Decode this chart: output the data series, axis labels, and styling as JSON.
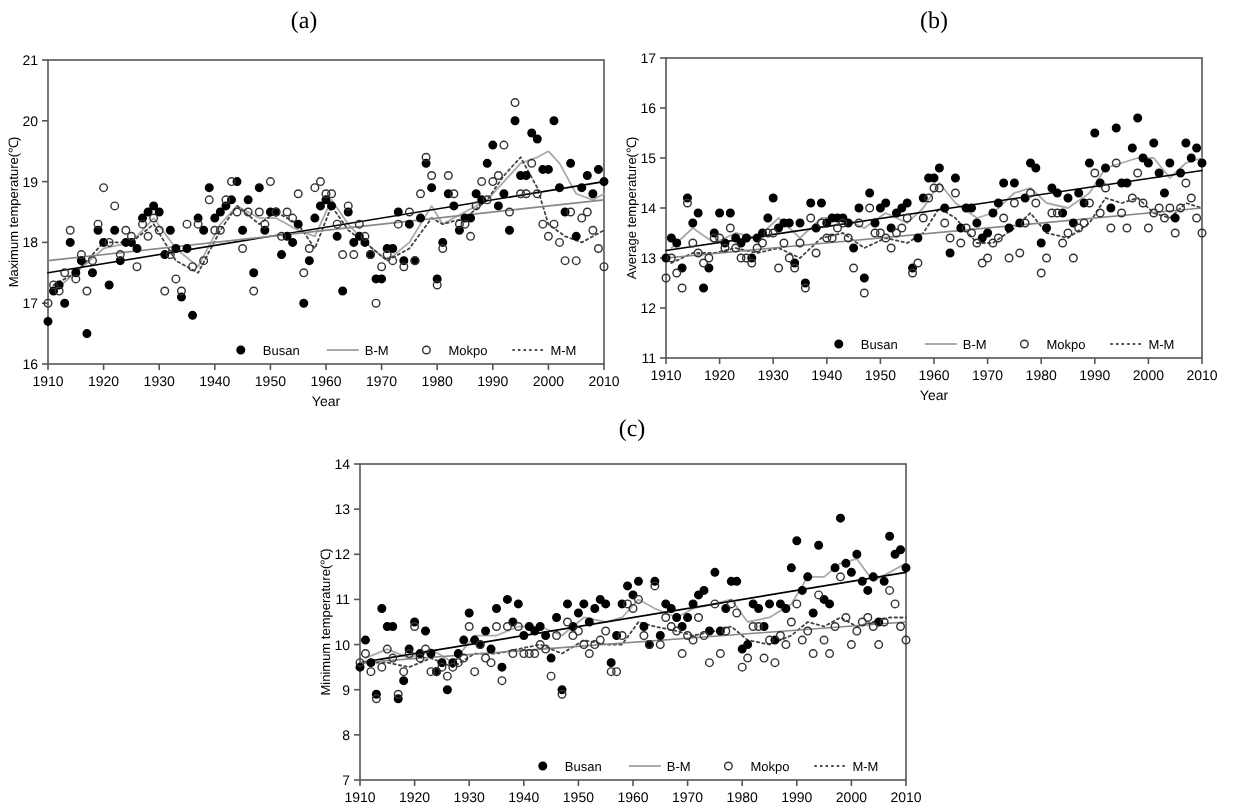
{
  "chart_data": [
    {
      "type": "scatter",
      "title": "(a)",
      "xlabel": "Year",
      "ylabel": "Maximum temperature(℃)",
      "xlim": [
        1910,
        2010
      ],
      "xticks": [
        1910,
        1920,
        1930,
        1940,
        1950,
        1960,
        1970,
        1980,
        1990,
        2000,
        2010
      ],
      "ylim": [
        16,
        21
      ],
      "yticks": [
        16,
        17,
        18,
        19,
        20,
        21
      ],
      "legend": "bottom right",
      "grid": false,
      "x": [
        1910,
        1911,
        1912,
        1913,
        1914,
        1915,
        1916,
        1917,
        1918,
        1919,
        1920,
        1921,
        1922,
        1923,
        1924,
        1925,
        1926,
        1927,
        1928,
        1929,
        1930,
        1931,
        1932,
        1933,
        1934,
        1935,
        1936,
        1937,
        1938,
        1939,
        1940,
        1941,
        1942,
        1943,
        1944,
        1945,
        1946,
        1947,
        1948,
        1949,
        1950,
        1951,
        1952,
        1953,
        1954,
        1955,
        1956,
        1957,
        1958,
        1959,
        1960,
        1961,
        1962,
        1963,
        1964,
        1965,
        1966,
        1967,
        1968,
        1969,
        1970,
        1971,
        1972,
        1973,
        1974,
        1975,
        1976,
        1977,
        1978,
        1979,
        1980,
        1981,
        1982,
        1983,
        1984,
        1985,
        1986,
        1987,
        1988,
        1989,
        1990,
        1991,
        1992,
        1993,
        1994,
        1995,
        1996,
        1997,
        1998,
        1999,
        2000,
        2001,
        2002,
        2003,
        2004,
        2005,
        2006,
        2007,
        2008,
        2009,
        2010
      ],
      "series": [
        {
          "name": "Busan",
          "type": "scatter",
          "marker": "circle",
          "color": "#000000",
          "values": [
            16.7,
            17.2,
            17.3,
            17.0,
            18.0,
            17.5,
            17.7,
            16.5,
            17.5,
            18.2,
            18.0,
            17.3,
            18.2,
            17.7,
            18.0,
            18.0,
            17.9,
            18.4,
            18.5,
            18.6,
            18.5,
            17.8,
            18.2,
            17.9,
            17.1,
            17.9,
            16.8,
            18.4,
            18.2,
            18.9,
            18.4,
            18.5,
            18.6,
            18.7,
            19.0,
            18.2,
            18.7,
            17.5,
            18.9,
            18.2,
            18.5,
            18.5,
            17.8,
            18.1,
            18.0,
            18.3,
            17.0,
            17.7,
            18.4,
            18.6,
            18.7,
            18.6,
            18.1,
            17.2,
            18.5,
            18.0,
            18.1,
            18.0,
            17.8,
            17.4,
            17.4,
            17.9,
            17.9,
            18.5,
            17.7,
            18.3,
            17.7,
            18.4,
            19.3,
            18.9,
            17.4,
            18.0,
            18.8,
            18.6,
            18.2,
            18.4,
            18.4,
            18.8,
            18.7,
            19.3,
            19.6,
            18.6,
            18.8,
            18.2,
            20.0,
            19.1,
            19.1,
            19.8,
            19.7,
            19.2,
            19.2,
            20.0,
            18.9,
            18.5,
            19.3,
            18.1,
            18.9,
            19.1,
            18.8,
            19.2,
            19.0
          ]
        },
        {
          "name": "B-M",
          "type": "line",
          "line_style": "solid",
          "color": "#aaaaaa",
          "x": [
            1911,
            1915,
            1920,
            1925,
            1929,
            1933,
            1937,
            1941,
            1944,
            1948,
            1951,
            1955,
            1958,
            1961,
            1964,
            1967,
            1971,
            1975,
            1979,
            1981,
            1985,
            1989,
            1992,
            1995,
            1998,
            2000,
            2002,
            2005,
            2008,
            2010
          ],
          "values": [
            17.2,
            17.5,
            17.9,
            18.0,
            18.4,
            17.9,
            17.6,
            18.3,
            18.6,
            18.4,
            18.4,
            18.2,
            18.1,
            18.7,
            18.3,
            18.0,
            17.7,
            18.0,
            18.6,
            18.3,
            18.5,
            18.7,
            19.0,
            19.3,
            19.4,
            19.5,
            19.3,
            18.8,
            18.7,
            18.8
          ]
        },
        {
          "name": "Mokpo",
          "type": "scatter",
          "marker": "circle",
          "color": "#333333",
          "values": [
            17.0,
            17.3,
            17.2,
            17.5,
            18.2,
            17.4,
            17.8,
            17.2,
            17.7,
            18.3,
            18.9,
            18.0,
            18.6,
            17.8,
            18.2,
            18.1,
            17.6,
            18.3,
            18.1,
            18.4,
            18.2,
            17.2,
            17.8,
            17.4,
            17.2,
            18.3,
            17.6,
            18.3,
            17.7,
            18.7,
            18.2,
            18.2,
            18.7,
            19.0,
            18.5,
            17.9,
            18.5,
            17.2,
            18.5,
            18.3,
            19.0,
            18.5,
            18.1,
            18.5,
            18.4,
            18.8,
            17.5,
            17.9,
            18.9,
            19.0,
            18.8,
            18.8,
            18.3,
            17.8,
            18.6,
            17.8,
            18.3,
            18.1,
            17.8,
            17.0,
            17.6,
            17.8,
            17.7,
            18.3,
            17.6,
            18.5,
            17.7,
            18.8,
            19.4,
            19.1,
            17.3,
            17.9,
            19.1,
            18.8,
            18.3,
            18.3,
            18.1,
            18.6,
            19.0,
            18.7,
            19.0,
            19.1,
            19.6,
            18.5,
            20.3,
            18.8,
            18.8,
            19.3,
            18.8,
            18.3,
            18.1,
            18.3,
            18.0,
            17.7,
            18.5,
            17.7,
            18.4,
            18.5,
            18.2,
            17.9,
            17.6
          ]
        },
        {
          "name": "M-M",
          "type": "line",
          "line_style": "dotted",
          "color": "#444444",
          "x": [
            1911,
            1915,
            1920,
            1925,
            1929,
            1933,
            1937,
            1941,
            1944,
            1948,
            1951,
            1955,
            1958,
            1961,
            1964,
            1967,
            1971,
            1975,
            1979,
            1981,
            1985,
            1989,
            1992,
            1995,
            1998,
            2000,
            2003,
            2006,
            2010
          ],
          "values": [
            17.3,
            17.5,
            18.0,
            18.0,
            18.3,
            17.7,
            17.5,
            18.2,
            18.6,
            18.3,
            18.5,
            18.3,
            17.9,
            18.6,
            18.2,
            18.0,
            17.7,
            17.9,
            18.4,
            18.3,
            18.4,
            18.7,
            19.1,
            19.4,
            18.9,
            18.3,
            18.1,
            18.0,
            18.2
          ]
        },
        {
          "type": "line",
          "line_style": "solid",
          "color": "#000000",
          "x": [
            1910,
            2010
          ],
          "values": [
            17.5,
            19.0
          ]
        },
        {
          "type": "line",
          "line_style": "solid",
          "color": "#888888",
          "x": [
            1910,
            2010
          ],
          "values": [
            17.7,
            18.7
          ]
        }
      ]
    },
    {
      "type": "scatter",
      "title": "(b)",
      "xlabel": "Year",
      "ylabel": "Average temperature(℃)",
      "xlim": [
        1910,
        2010
      ],
      "xticks": [
        1910,
        1920,
        1930,
        1940,
        1950,
        1960,
        1970,
        1980,
        1990,
        2000,
        2010
      ],
      "ylim": [
        11,
        17
      ],
      "yticks": [
        11,
        12,
        13,
        14,
        15,
        16,
        17
      ],
      "legend": "bottom right",
      "grid": false,
      "x": [
        1910,
        1911,
        1912,
        1913,
        1914,
        1915,
        1916,
        1917,
        1918,
        1919,
        1920,
        1921,
        1922,
        1923,
        1924,
        1925,
        1926,
        1927,
        1928,
        1929,
        1930,
        1931,
        1932,
        1933,
        1934,
        1935,
        1936,
        1937,
        1938,
        1939,
        1940,
        1941,
        1942,
        1943,
        1944,
        1945,
        1946,
        1947,
        1948,
        1949,
        1950,
        1951,
        1952,
        1953,
        1954,
        1955,
        1956,
        1957,
        1958,
        1959,
        1960,
        1961,
        1962,
        1963,
        1964,
        1965,
        1966,
        1967,
        1968,
        1969,
        1970,
        1971,
        1972,
        1973,
        1974,
        1975,
        1976,
        1977,
        1978,
        1979,
        1980,
        1981,
        1982,
        1983,
        1984,
        1985,
        1986,
        1987,
        1988,
        1989,
        1990,
        1991,
        1992,
        1993,
        1994,
        1995,
        1996,
        1997,
        1998,
        1999,
        2000,
        2001,
        2002,
        2003,
        2004,
        2005,
        2006,
        2007,
        2008,
        2009,
        2010
      ],
      "series": [
        {
          "name": "Busan",
          "type": "scatter",
          "marker": "circle",
          "color": "#000000",
          "values": [
            13.0,
            13.4,
            13.3,
            12.8,
            14.2,
            13.7,
            13.9,
            12.4,
            12.8,
            13.5,
            13.9,
            13.3,
            13.9,
            13.4,
            13.3,
            13.4,
            13.0,
            13.4,
            13.5,
            13.8,
            14.2,
            13.6,
            13.7,
            13.7,
            12.9,
            13.7,
            12.5,
            14.1,
            13.6,
            14.1,
            13.7,
            13.8,
            13.8,
            13.8,
            13.7,
            13.2,
            14.0,
            12.6,
            14.3,
            13.7,
            14.0,
            14.1,
            13.6,
            13.9,
            14.0,
            14.1,
            12.8,
            13.4,
            14.2,
            14.6,
            14.6,
            14.8,
            14.0,
            13.1,
            14.6,
            13.6,
            14.0,
            14.0,
            13.7,
            13.4,
            13.5,
            13.9,
            14.1,
            14.5,
            13.6,
            14.5,
            13.7,
            14.2,
            14.9,
            14.8,
            13.3,
            13.6,
            14.4,
            14.3,
            13.9,
            14.2,
            13.7,
            14.3,
            14.1,
            14.9,
            15.5,
            14.5,
            14.8,
            14.0,
            15.6,
            14.5,
            14.5,
            15.2,
            15.8,
            15.0,
            14.9,
            15.3,
            14.7,
            14.3,
            14.9,
            13.8,
            14.7,
            15.3,
            15.0,
            15.2,
            14.9
          ]
        },
        {
          "name": "B-M",
          "type": "line",
          "line_style": "solid",
          "color": "#aaaaaa",
          "x": [
            1911,
            1915,
            1919,
            1923,
            1927,
            1931,
            1935,
            1939,
            1943,
            1947,
            1951,
            1955,
            1958,
            1961,
            1964,
            1968,
            1971,
            1975,
            1978,
            1981,
            1985,
            1989,
            1992,
            1995,
            1998,
            2001,
            2004,
            2007,
            2010
          ],
          "values": [
            13.2,
            13.6,
            13.3,
            13.5,
            13.4,
            13.8,
            13.4,
            13.8,
            13.8,
            13.6,
            13.9,
            13.7,
            14.0,
            14.5,
            14.1,
            13.8,
            13.9,
            14.3,
            14.4,
            14.1,
            14.0,
            14.3,
            14.8,
            14.9,
            15.0,
            15.0,
            14.6,
            14.9,
            15.0
          ]
        },
        {
          "name": "Mokpo",
          "type": "scatter",
          "marker": "circle",
          "color": "#333333",
          "values": [
            12.6,
            13.0,
            12.7,
            12.4,
            14.1,
            13.3,
            13.1,
            12.9,
            13.0,
            13.4,
            13.4,
            13.2,
            13.6,
            13.2,
            13.0,
            13.0,
            12.9,
            13.2,
            13.3,
            13.5,
            13.5,
            12.8,
            13.3,
            13.0,
            12.8,
            13.3,
            12.4,
            13.8,
            13.1,
            13.7,
            13.4,
            13.4,
            13.6,
            13.7,
            13.4,
            12.8,
            13.7,
            12.3,
            14.0,
            13.5,
            13.5,
            13.4,
            13.2,
            13.5,
            13.6,
            13.8,
            12.7,
            12.9,
            13.8,
            14.2,
            14.4,
            14.4,
            13.7,
            13.4,
            14.3,
            13.3,
            13.6,
            13.5,
            13.3,
            12.9,
            13.0,
            13.3,
            13.4,
            13.8,
            13.0,
            14.1,
            13.1,
            13.7,
            14.3,
            14.1,
            12.7,
            13.0,
            13.9,
            13.9,
            13.3,
            13.5,
            13.0,
            13.6,
            13.7,
            14.1,
            14.7,
            13.9,
            14.4,
            13.6,
            14.9,
            13.9,
            13.6,
            14.2,
            14.7,
            14.1,
            13.6,
            13.9,
            14.0,
            13.8,
            14.0,
            13.5,
            14.0,
            14.5,
            14.2,
            13.8,
            13.5
          ]
        },
        {
          "name": "M-M",
          "type": "line",
          "line_style": "dotted",
          "color": "#444444",
          "x": [
            1911,
            1915,
            1919,
            1923,
            1927,
            1931,
            1935,
            1939,
            1943,
            1947,
            1951,
            1955,
            1958,
            1961,
            1964,
            1968,
            1971,
            1975,
            1978,
            1981,
            1985,
            1989,
            1992,
            1995,
            1998,
            2001,
            2004,
            2007,
            2010
          ],
          "values": [
            12.9,
            13.1,
            13.1,
            13.2,
            13.1,
            13.2,
            13.0,
            13.4,
            13.5,
            13.2,
            13.4,
            13.3,
            13.5,
            14.0,
            13.8,
            13.3,
            13.3,
            13.6,
            13.9,
            13.5,
            13.4,
            13.7,
            14.2,
            14.1,
            14.2,
            13.9,
            13.8,
            14.1,
            14.0
          ]
        },
        {
          "type": "line",
          "line_style": "solid",
          "color": "#000000",
          "x": [
            1910,
            2010
          ],
          "values": [
            13.15,
            14.75
          ]
        },
        {
          "type": "line",
          "line_style": "solid",
          "color": "#888888",
          "x": [
            1910,
            2010
          ],
          "values": [
            13.0,
            14.0
          ]
        }
      ]
    },
    {
      "type": "scatter",
      "title": "(c)",
      "ylabel": "Minimum temperature(℃)",
      "xlim": [
        1910,
        2010
      ],
      "xticks": [
        1910,
        1920,
        1930,
        1940,
        1950,
        1960,
        1970,
        1980,
        1990,
        2000,
        2010
      ],
      "ylim": [
        7,
        14
      ],
      "yticks": [
        7,
        8,
        9,
        10,
        11,
        12,
        13,
        14
      ],
      "legend": "bottom right",
      "grid": false,
      "x": [
        1910,
        1911,
        1912,
        1913,
        1914,
        1915,
        1916,
        1917,
        1918,
        1919,
        1920,
        1921,
        1922,
        1923,
        1924,
        1925,
        1926,
        1927,
        1928,
        1929,
        1930,
        1931,
        1932,
        1933,
        1934,
        1935,
        1936,
        1937,
        1938,
        1939,
        1940,
        1941,
        1942,
        1943,
        1944,
        1945,
        1946,
        1947,
        1948,
        1949,
        1950,
        1951,
        1952,
        1953,
        1954,
        1955,
        1956,
        1957,
        1958,
        1959,
        1960,
        1961,
        1962,
        1963,
        1964,
        1965,
        1966,
        1967,
        1968,
        1969,
        1970,
        1971,
        1972,
        1973,
        1974,
        1975,
        1976,
        1977,
        1978,
        1979,
        1980,
        1981,
        1982,
        1983,
        1984,
        1985,
        1986,
        1987,
        1988,
        1989,
        1990,
        1991,
        1992,
        1993,
        1994,
        1995,
        1996,
        1997,
        1998,
        1999,
        2000,
        2001,
        2002,
        2003,
        2004,
        2005,
        2006,
        2007,
        2008,
        2009,
        2010
      ],
      "series": [
        {
          "name": "Busan",
          "type": "scatter",
          "marker": "circle",
          "color": "#000000",
          "values": [
            9.5,
            10.1,
            9.6,
            8.9,
            10.8,
            10.4,
            10.4,
            8.8,
            9.2,
            9.9,
            10.5,
            9.8,
            10.3,
            9.8,
            9.4,
            9.6,
            9.0,
            9.6,
            9.8,
            10.1,
            10.7,
            10.1,
            10.0,
            10.3,
            9.9,
            10.8,
            9.5,
            11.0,
            10.5,
            10.9,
            10.2,
            10.4,
            10.3,
            10.4,
            10.2,
            9.7,
            10.6,
            9.0,
            10.9,
            10.4,
            10.7,
            10.9,
            10.5,
            10.8,
            11.0,
            10.9,
            9.6,
            10.2,
            10.9,
            11.3,
            11.1,
            11.4,
            10.4,
            10.0,
            11.4,
            10.2,
            10.9,
            10.8,
            10.6,
            10.4,
            10.6,
            10.9,
            11.1,
            11.2,
            10.3,
            11.6,
            10.3,
            10.8,
            11.4,
            11.4,
            9.9,
            10.0,
            10.9,
            10.8,
            10.4,
            10.9,
            10.1,
            10.9,
            10.8,
            11.7,
            12.3,
            11.2,
            11.5,
            10.7,
            12.2,
            11.0,
            10.9,
            11.7,
            12.8,
            11.8,
            11.6,
            12.0,
            11.4,
            11.2,
            11.5,
            10.5,
            11.4,
            12.4,
            12.0,
            12.1,
            11.7
          ]
        },
        {
          "name": "B-M",
          "type": "line",
          "line_style": "solid",
          "color": "#aaaaaa",
          "x": [
            1911,
            1915,
            1919,
            1923,
            1927,
            1931,
            1935,
            1939,
            1943,
            1947,
            1951,
            1955,
            1958,
            1961,
            1964,
            1968,
            1971,
            1975,
            1978,
            1981,
            1985,
            1989,
            1992,
            1995,
            1998,
            2001,
            2004,
            2007,
            2010
          ],
          "values": [
            9.7,
            9.9,
            9.7,
            9.9,
            9.6,
            10.2,
            10.2,
            10.4,
            10.4,
            10.2,
            10.6,
            10.5,
            10.6,
            11.0,
            10.8,
            10.6,
            10.8,
            10.9,
            11.0,
            10.5,
            10.6,
            10.9,
            11.5,
            11.5,
            11.8,
            11.9,
            11.4,
            11.6,
            11.8
          ]
        },
        {
          "name": "Mokpo",
          "type": "scatter",
          "marker": "circle",
          "color": "#333333",
          "values": [
            9.6,
            9.8,
            9.4,
            8.8,
            9.5,
            9.9,
            9.7,
            8.9,
            9.4,
            9.8,
            10.4,
            9.7,
            9.9,
            9.4,
            9.4,
            9.5,
            9.3,
            9.5,
            9.6,
            9.7,
            10.4,
            9.4,
            10.0,
            9.7,
            9.6,
            10.4,
            9.2,
            10.4,
            9.8,
            10.4,
            9.8,
            9.8,
            9.8,
            10.0,
            9.9,
            9.3,
            10.2,
            8.9,
            10.5,
            10.2,
            10.3,
            10.0,
            9.8,
            10.0,
            10.1,
            10.3,
            9.4,
            9.4,
            10.2,
            10.9,
            10.8,
            11.0,
            10.2,
            10.0,
            11.3,
            10.0,
            10.6,
            10.4,
            10.3,
            9.8,
            10.2,
            10.1,
            10.6,
            10.2,
            9.6,
            10.9,
            9.8,
            10.3,
            10.9,
            10.7,
            9.5,
            9.7,
            10.4,
            10.4,
            9.7,
            10.1,
            9.6,
            10.2,
            10.0,
            10.5,
            10.9,
            10.1,
            10.3,
            9.8,
            11.1,
            10.1,
            9.8,
            10.4,
            11.5,
            10.6,
            10.0,
            10.3,
            10.5,
            10.6,
            10.4,
            10.0,
            10.5,
            11.2,
            10.9,
            10.4,
            10.1
          ]
        },
        {
          "name": "M-M",
          "type": "line",
          "line_style": "dotted",
          "color": "#444444",
          "x": [
            1911,
            1915,
            1919,
            1923,
            1927,
            1931,
            1935,
            1939,
            1943,
            1947,
            1951,
            1955,
            1958,
            1961,
            1964,
            1968,
            1971,
            1975,
            1978,
            1981,
            1985,
            1989,
            1992,
            1995,
            1998,
            2001,
            2004,
            2007,
            2010
          ],
          "values": [
            9.6,
            9.6,
            9.5,
            9.7,
            9.5,
            9.8,
            9.8,
            9.9,
            10.0,
            9.8,
            10.1,
            10.0,
            10.0,
            10.5,
            10.4,
            10.3,
            10.2,
            10.3,
            10.4,
            10.1,
            10.0,
            10.2,
            10.5,
            10.4,
            10.6,
            10.4,
            10.5,
            10.6,
            10.6
          ]
        },
        {
          "type": "line",
          "line_style": "solid",
          "color": "#000000",
          "x": [
            1910,
            2010
          ],
          "values": [
            9.6,
            11.6
          ]
        },
        {
          "type": "line",
          "line_style": "solid",
          "color": "#888888",
          "x": [
            1910,
            2010
          ],
          "values": [
            9.6,
            10.5
          ]
        }
      ]
    }
  ]
}
